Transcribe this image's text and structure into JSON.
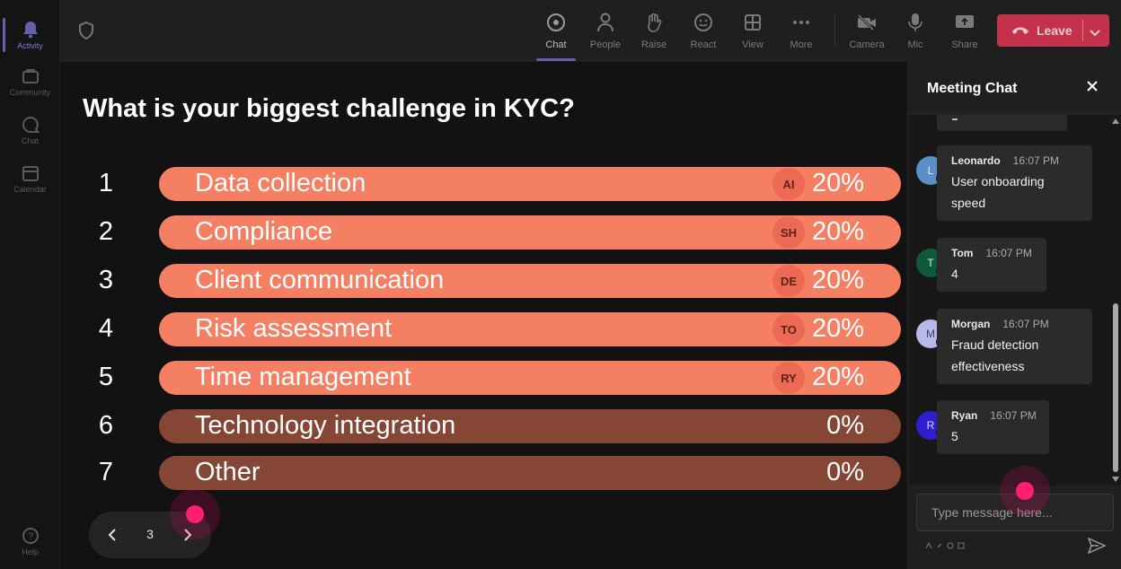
{
  "rail": [
    {
      "label": "Activity",
      "icon": "bell-icon",
      "active": true
    },
    {
      "label": "Community",
      "icon": "community-icon"
    },
    {
      "label": "Chat",
      "icon": "chat-icon"
    },
    {
      "label": "Calendar",
      "icon": "calendar-icon"
    },
    {
      "label": "Help",
      "icon": "help-icon"
    }
  ],
  "toolbar": {
    "chat": "Chat",
    "people": "People",
    "raise": "Raise",
    "react": "React",
    "view": "View",
    "more": "More",
    "camera": "Camera",
    "mic": "Mic",
    "share": "Share",
    "leave": "Leave",
    "leave_color": "#c4314b"
  },
  "poll": {
    "question": "What is your biggest challenge in KYC?",
    "options": [
      {
        "num": "1",
        "label": "Data collection",
        "avatar": "AI",
        "percent": "20%",
        "value": 20
      },
      {
        "num": "2",
        "label": "Compliance",
        "avatar": "SH",
        "percent": "20%",
        "value": 20
      },
      {
        "num": "3",
        "label": "Client communication",
        "avatar": "DE",
        "percent": "20%",
        "value": 20
      },
      {
        "num": "4",
        "label": "Risk assessment",
        "avatar": "TO",
        "percent": "20%",
        "value": 20
      },
      {
        "num": "5",
        "label": "Time management",
        "avatar": "RY",
        "percent": "20%",
        "value": 20
      },
      {
        "num": "6",
        "label": "Technology integration",
        "avatar": "",
        "percent": "0%",
        "value": 0
      },
      {
        "num": "7",
        "label": "Other",
        "avatar": "",
        "percent": "0%",
        "value": 0
      }
    ],
    "page": "3",
    "bar_color": "#f47f63",
    "bar_zero_color": "#864636"
  },
  "chat": {
    "title": "Meeting Chat",
    "messages": [
      {
        "initial": "L",
        "name": "Leonardo",
        "time": "16:07 PM",
        "text": "User onboarding speed",
        "avatar_color": "#5b8fc5"
      },
      {
        "initial": "T",
        "name": "Tom",
        "time": "16:07 PM",
        "text": "4",
        "avatar_color": "#0f5a3a"
      },
      {
        "initial": "M",
        "name": "Morgan",
        "time": "16:07 PM",
        "text": "Fraud detection effectiveness",
        "avatar_color": "#b7b9e6"
      },
      {
        "initial": "R",
        "name": "Ryan",
        "time": "16:07 PM",
        "text": "5",
        "avatar_color": "#2d1fd0"
      }
    ],
    "placeholder": "Type message here..."
  }
}
